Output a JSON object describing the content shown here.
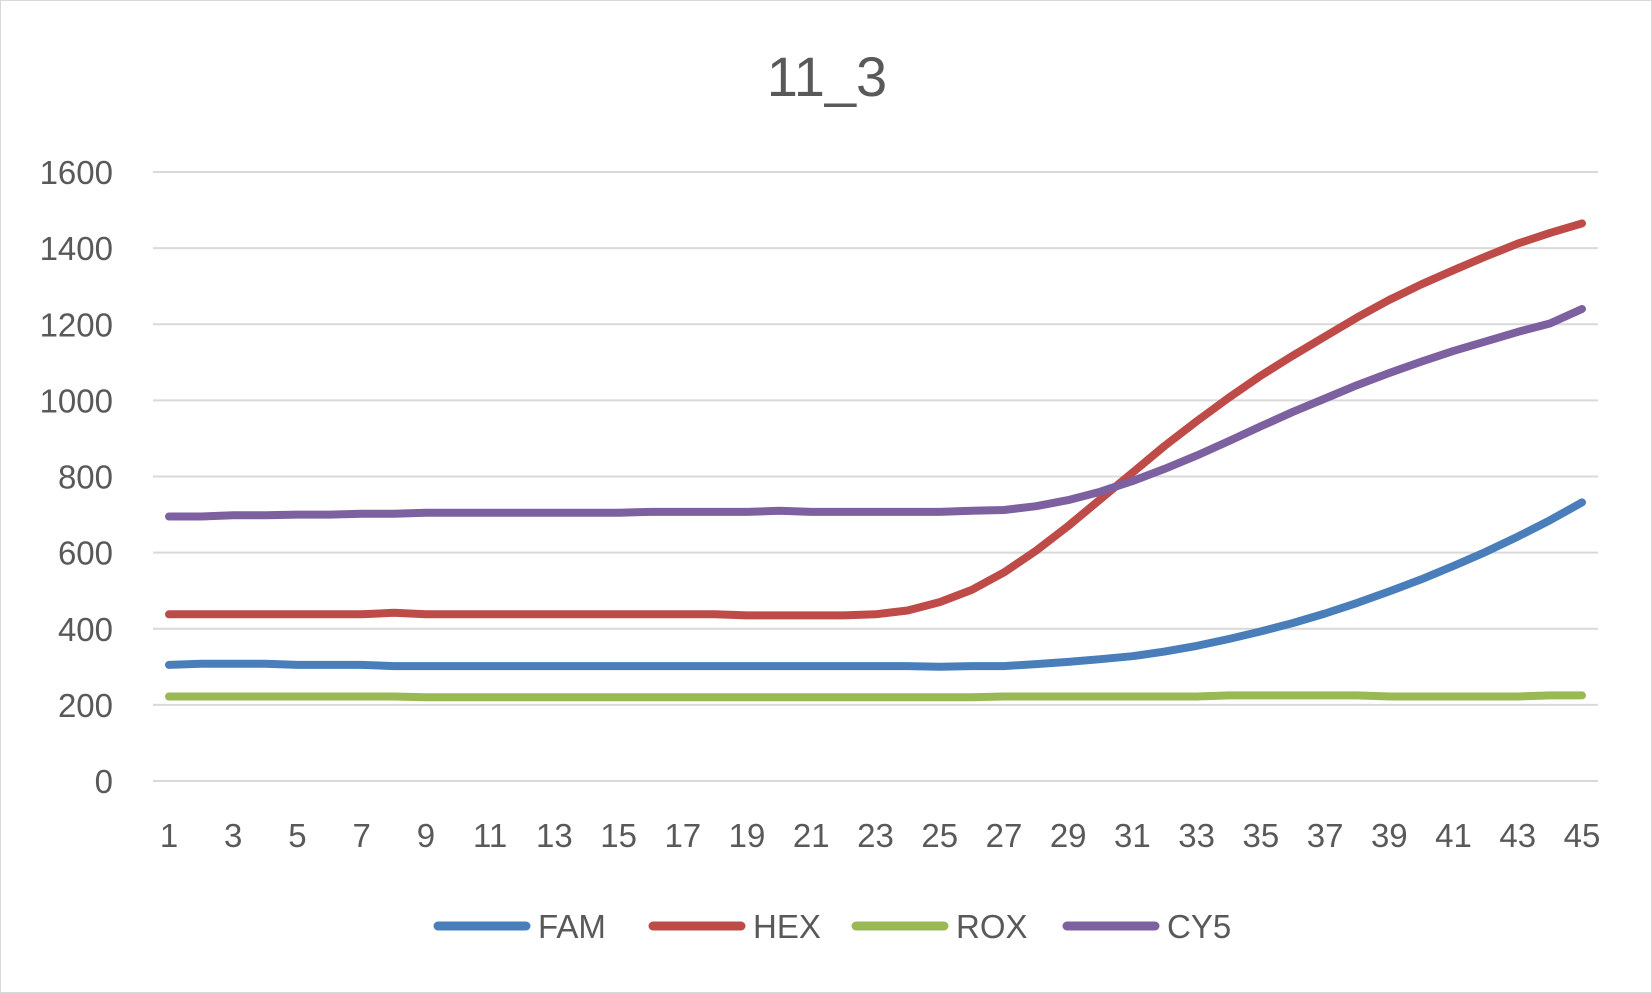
{
  "chart_data": {
    "type": "line",
    "title": "11_3",
    "xlabel": "",
    "ylabel": "",
    "ylim": [
      0,
      1600
    ],
    "yticks": [
      0,
      200,
      400,
      600,
      800,
      1000,
      1200,
      1400,
      1600
    ],
    "x": [
      1,
      2,
      3,
      4,
      5,
      6,
      7,
      8,
      9,
      10,
      11,
      12,
      13,
      14,
      15,
      16,
      17,
      18,
      19,
      20,
      21,
      22,
      23,
      24,
      25,
      26,
      27,
      28,
      29,
      30,
      31,
      32,
      33,
      34,
      35,
      36,
      37,
      38,
      39,
      40,
      41,
      42,
      43,
      44,
      45
    ],
    "xtick_labels": [
      "1",
      "3",
      "5",
      "7",
      "9",
      "11",
      "13",
      "15",
      "17",
      "19",
      "21",
      "23",
      "25",
      "27",
      "29",
      "31",
      "33",
      "35",
      "37",
      "39",
      "41",
      "43",
      "45"
    ],
    "grid": true,
    "legend_position": "bottom",
    "series": [
      {
        "name": "FAM",
        "color": "#4a7ebb",
        "values": [
          305,
          308,
          308,
          308,
          305,
          305,
          305,
          302,
          302,
          302,
          302,
          302,
          302,
          302,
          302,
          302,
          302,
          302,
          302,
          302,
          302,
          302,
          302,
          302,
          300,
          302,
          302,
          307,
          313,
          320,
          328,
          340,
          355,
          373,
          393,
          415,
          440,
          468,
          498,
          530,
          565,
          602,
          642,
          685,
          732
        ]
      },
      {
        "name": "HEX",
        "color": "#be4b48",
        "values": [
          438,
          438,
          438,
          438,
          438,
          438,
          438,
          442,
          438,
          438,
          438,
          438,
          438,
          438,
          438,
          438,
          438,
          438,
          435,
          435,
          435,
          435,
          438,
          448,
          470,
          502,
          548,
          605,
          670,
          740,
          810,
          880,
          945,
          1007,
          1065,
          1118,
          1168,
          1218,
          1264,
          1305,
          1342,
          1378,
          1412,
          1440,
          1465
        ]
      },
      {
        "name": "ROX",
        "color": "#98b954",
        "values": [
          222,
          222,
          222,
          222,
          222,
          222,
          222,
          222,
          220,
          220,
          220,
          220,
          220,
          220,
          220,
          220,
          220,
          220,
          220,
          220,
          220,
          220,
          220,
          220,
          220,
          220,
          222,
          222,
          222,
          222,
          222,
          222,
          222,
          225,
          225,
          225,
          225,
          225,
          222,
          222,
          222,
          222,
          222,
          225,
          225
        ]
      },
      {
        "name": "CY5",
        "color": "#7d60a0",
        "values": [
          695,
          695,
          698,
          698,
          700,
          700,
          702,
          702,
          705,
          705,
          705,
          705,
          705,
          705,
          705,
          707,
          707,
          707,
          707,
          710,
          707,
          707,
          707,
          707,
          707,
          710,
          712,
          722,
          738,
          760,
          788,
          820,
          855,
          893,
          932,
          970,
          1005,
          1040,
          1072,
          1102,
          1130,
          1155,
          1180,
          1202,
          1240
        ]
      }
    ]
  }
}
